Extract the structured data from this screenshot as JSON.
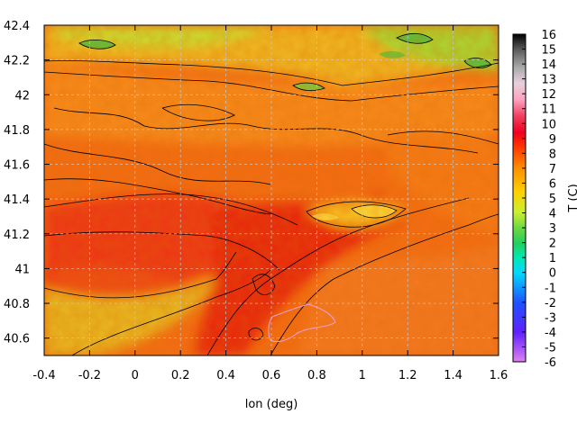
{
  "chart_data": {
    "type": "heatmap",
    "title": "",
    "xlabel": "lon (deg)",
    "ylabel": "",
    "colorbar_label": "T (C)",
    "xlim": [
      -0.4,
      1.6
    ],
    "ylim": [
      40.5,
      42.4
    ],
    "x_ticks": [
      "-0.4",
      "-0.2",
      "0",
      "0.2",
      "0.4",
      "0.6",
      "0.8",
      "1",
      "1.2",
      "1.4",
      "1.6"
    ],
    "y_ticks": [
      "40.6",
      "40.8",
      "41",
      "41.2",
      "41.4",
      "41.6",
      "41.8",
      "42",
      "42.2",
      "42.4"
    ],
    "colorbar_ticks": [
      "-6",
      "-5",
      "-4",
      "-3",
      "-2",
      "-1",
      "0",
      "1",
      "2",
      "3",
      "4",
      "5",
      "6",
      "7",
      "8",
      "9",
      "10",
      "11",
      "12",
      "13",
      "14",
      "15",
      "16"
    ],
    "colorbar_range": [
      -6,
      16
    ],
    "grid": true,
    "contours": true,
    "dominant_value_range": [
      8,
      11
    ],
    "cool_regions_lat_above": 42.0
  }
}
